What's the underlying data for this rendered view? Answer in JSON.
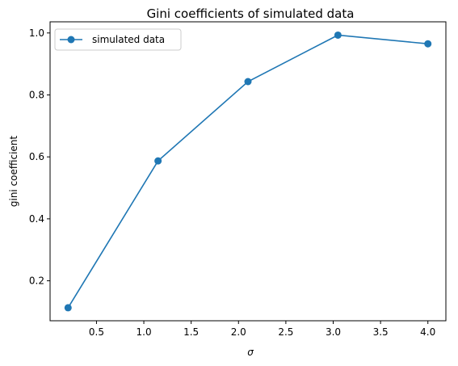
{
  "chart_data": {
    "type": "line",
    "title": "Gini coefficients of simulated data",
    "xlabel": "σ",
    "ylabel": "gini coefficient",
    "xlim": [
      0.01,
      4.19
    ],
    "ylim": [
      0.071,
      1.036
    ],
    "xticks": [
      "0.5",
      "1.0",
      "1.5",
      "2.0",
      "2.5",
      "3.0",
      "3.5",
      "4.0"
    ],
    "xtick_values": [
      0.5,
      1.0,
      1.5,
      2.0,
      2.5,
      3.0,
      3.5,
      4.0
    ],
    "yticks": [
      "0.2",
      "0.4",
      "0.6",
      "0.8",
      "1.0"
    ],
    "ytick_values": [
      0.2,
      0.4,
      0.6,
      0.8,
      1.0
    ],
    "grid": false,
    "legend_position": "top-left",
    "series": [
      {
        "name": "simulated data",
        "color": "#1f77b4",
        "marker": "circle",
        "x": [
          0.2,
          1.15,
          2.1,
          3.05,
          4.0
        ],
        "y": [
          0.113,
          0.587,
          0.843,
          0.993,
          0.965
        ]
      }
    ]
  }
}
